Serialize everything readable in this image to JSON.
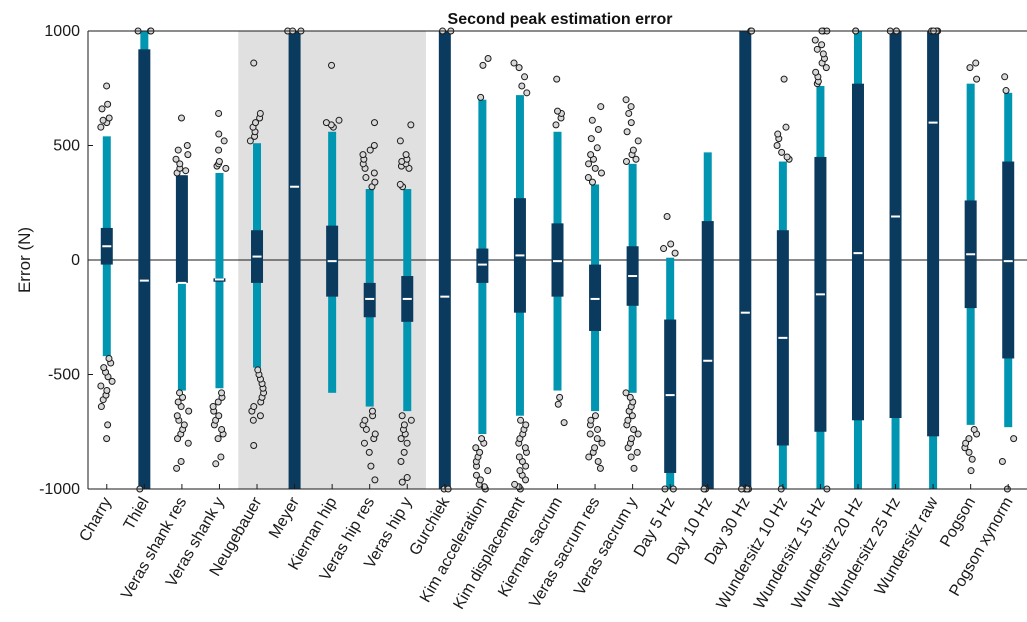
{
  "chart_data": {
    "type": "boxplot",
    "title": "Second peak estimation error",
    "ylabel": "Error (N)",
    "xlabel": "",
    "ylim": [
      -1000,
      1000
    ],
    "yticks": [
      -1000,
      -500,
      0,
      500,
      1000
    ],
    "grid": false,
    "legend": "none",
    "shaded_categories": [
      "Neugebauer",
      "Meyer",
      "Kiernan hip",
      "Veras hip res",
      "Veras hip y"
    ],
    "colors": {
      "whisker": "#0095b0",
      "box": "#0a3a5e",
      "median": "#ffffff",
      "shade": "#e0e0e0",
      "outlier_fill": "#d8d8d8",
      "outlier_stroke": "#1a1a1a"
    },
    "categories": [
      "Charry",
      "Thiel",
      "Veras shank res",
      "Veras shank y",
      "Neugebauer",
      "Meyer",
      "Kiernan hip",
      "Veras hip res",
      "Veras hip y",
      "Gurchiek",
      "Kim acceleration",
      "Kim displacement",
      "Kiernan sacrum",
      "Veras sacrum res",
      "Veras sacrum y",
      "Day 5 Hz",
      "Day 10 Hz",
      "Day 30 Hz",
      "Wundersitz 10 Hz",
      "Wundersitz 15 Hz",
      "Wundersitz 20 Hz",
      "Wundersitz 25 Hz",
      "Wundersitz raw",
      "Pogson",
      "Pogson xynorm"
    ],
    "boxes": [
      {
        "whisker_low": -420,
        "q1": -20,
        "median": 60,
        "q3": 140,
        "whisker_high": 540,
        "outliers": [
          -780,
          -720,
          -640,
          -610,
          -590,
          -570,
          -550,
          -530,
          -510,
          -490,
          -470,
          -450,
          -430,
          580,
          600,
          610,
          620,
          660,
          680,
          760
        ]
      },
      {
        "whisker_low": -1000,
        "q1": -1000,
        "median": -90,
        "q3": 920,
        "whisker_high": 1000,
        "outliers": [
          -1000,
          1000,
          1000,
          1000
        ]
      },
      {
        "whisker_low": -570,
        "q1": -100,
        "median": -100,
        "q3": 370,
        "whisker_high": 370,
        "outliers": [
          -910,
          -880,
          -800,
          -780,
          -760,
          -740,
          -720,
          -700,
          -680,
          -660,
          -640,
          -620,
          -600,
          -580,
          380,
          390,
          400,
          420,
          440,
          460,
          480,
          500,
          620
        ]
      },
      {
        "whisker_low": -560,
        "q1": -95,
        "median": -85,
        "q3": -80,
        "whisker_high": 380,
        "outliers": [
          -890,
          -860,
          -780,
          -760,
          -740,
          -720,
          -700,
          -680,
          -660,
          -640,
          -620,
          -600,
          -580,
          400,
          410,
          420,
          430,
          480,
          520,
          550,
          640
        ]
      },
      {
        "whisker_low": -470,
        "q1": -100,
        "median": 15,
        "q3": 130,
        "whisker_high": 510,
        "outliers": [
          -810,
          -700,
          -680,
          -660,
          -640,
          -620,
          -600,
          -580,
          -560,
          -540,
          -520,
          -500,
          -480,
          520,
          540,
          560,
          580,
          600,
          620,
          640,
          860
        ]
      },
      {
        "whisker_low": -1000,
        "q1": -1000,
        "median": 320,
        "q3": 1000,
        "whisker_high": 1000,
        "outliers": [
          1000,
          1000,
          1000
        ]
      },
      {
        "whisker_low": -580,
        "q1": -160,
        "median": -5,
        "q3": 150,
        "whisker_high": 560,
        "outliers": [
          580,
          590,
          600,
          610,
          850
        ]
      },
      {
        "whisker_low": -640,
        "q1": -250,
        "median": -170,
        "q3": -100,
        "whisker_high": 310,
        "outliers": [
          -960,
          -900,
          -840,
          -800,
          -780,
          -760,
          -740,
          -720,
          -700,
          -680,
          -660,
          320,
          340,
          360,
          380,
          400,
          420,
          440,
          460,
          480,
          500,
          600
        ]
      },
      {
        "whisker_low": -660,
        "q1": -270,
        "median": -170,
        "q3": -70,
        "whisker_high": 310,
        "outliers": [
          -970,
          -950,
          -880,
          -840,
          -800,
          -780,
          -760,
          -740,
          -720,
          -700,
          -680,
          320,
          330,
          400,
          410,
          420,
          430,
          440,
          460,
          520,
          590
        ]
      },
      {
        "whisker_low": -1000,
        "q1": -1000,
        "median": -160,
        "q3": 1000,
        "whisker_high": 1000,
        "outliers": [
          -1000,
          -1000,
          1000,
          1000
        ]
      },
      {
        "whisker_low": -760,
        "q1": -100,
        "median": -20,
        "q3": 50,
        "whisker_high": 700,
        "outliers": [
          -1000,
          -990,
          -980,
          -960,
          -940,
          -920,
          -900,
          -880,
          -860,
          -840,
          -820,
          -800,
          -780,
          710,
          850,
          880
        ]
      },
      {
        "whisker_low": -680,
        "q1": -230,
        "median": 20,
        "q3": 270,
        "whisker_high": 720,
        "outliers": [
          -1000,
          -990,
          -980,
          -960,
          -940,
          -920,
          -900,
          -880,
          -860,
          -840,
          -820,
          -800,
          -780,
          -760,
          -740,
          -720,
          -700,
          730,
          760,
          800,
          840,
          860
        ]
      },
      {
        "whisker_low": -570,
        "q1": -160,
        "median": -5,
        "q3": 160,
        "whisker_high": 560,
        "outliers": [
          -710,
          -630,
          -600,
          590,
          620,
          640,
          650,
          790
        ]
      },
      {
        "whisker_low": -660,
        "q1": -310,
        "median": -170,
        "q3": -20,
        "whisker_high": 330,
        "outliers": [
          -910,
          -880,
          -860,
          -840,
          -820,
          -800,
          -780,
          -760,
          -740,
          -720,
          -700,
          -680,
          340,
          360,
          380,
          400,
          420,
          440,
          460,
          490,
          530,
          570,
          610,
          670
        ]
      },
      {
        "whisker_low": -580,
        "q1": -200,
        "median": -70,
        "q3": 60,
        "whisker_high": 420,
        "outliers": [
          -910,
          -860,
          -840,
          -820,
          -800,
          -780,
          -760,
          -740,
          -720,
          -700,
          -680,
          -660,
          -640,
          -620,
          -600,
          -580,
          430,
          440,
          460,
          480,
          520,
          560,
          600,
          640,
          670,
          700
        ]
      },
      {
        "whisker_low": -1000,
        "q1": -930,
        "median": -590,
        "q3": -260,
        "whisker_high": 10,
        "outliers": [
          -1000,
          -1000,
          30,
          50,
          70,
          190
        ]
      },
      {
        "whisker_low": -1000,
        "q1": -1000,
        "median": -440,
        "q3": 170,
        "whisker_high": 470,
        "outliers": [
          -1000,
          -1000
        ]
      },
      {
        "whisker_low": -1000,
        "q1": -1000,
        "median": -230,
        "q3": 1000,
        "whisker_high": 1000,
        "outliers": [
          -1000,
          -1000,
          -1000,
          -1000,
          1000,
          1000
        ]
      },
      {
        "whisker_low": -1000,
        "q1": -810,
        "median": -340,
        "q3": 130,
        "whisker_high": 430,
        "outliers": [
          -1000,
          440,
          450,
          470,
          500,
          530,
          550,
          580,
          790
        ]
      },
      {
        "whisker_low": -1000,
        "q1": -750,
        "median": -150,
        "q3": 450,
        "whisker_high": 760,
        "outliers": [
          -1000,
          770,
          780,
          800,
          820,
          840,
          860,
          880,
          900,
          920,
          940,
          960,
          1000,
          1000,
          1000
        ]
      },
      {
        "whisker_low": -1000,
        "q1": -700,
        "median": 30,
        "q3": 770,
        "whisker_high": 1000,
        "outliers": [
          1000,
          1000
        ]
      },
      {
        "whisker_low": -1000,
        "q1": -690,
        "median": 190,
        "q3": 1000,
        "whisker_high": 1000,
        "outliers": [
          1000,
          1000,
          1000
        ]
      },
      {
        "whisker_low": -1000,
        "q1": -770,
        "median": 600,
        "q3": 1000,
        "whisker_high": 1000,
        "outliers": [
          1000,
          1000,
          1000,
          1000
        ]
      },
      {
        "whisker_low": -720,
        "q1": -210,
        "median": 25,
        "q3": 260,
        "whisker_high": 770,
        "outliers": [
          -920,
          -870,
          -840,
          -820,
          -800,
          -780,
          -760,
          -740,
          790,
          840,
          860
        ]
      },
      {
        "whisker_low": -730,
        "q1": -430,
        "median": -5,
        "q3": 430,
        "whisker_high": 730,
        "outliers": [
          -1000,
          -880,
          -780,
          740,
          800
        ]
      }
    ]
  }
}
